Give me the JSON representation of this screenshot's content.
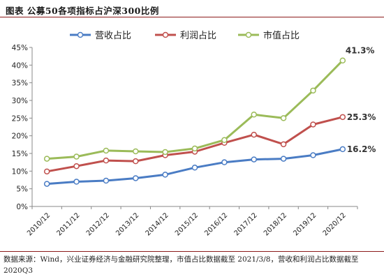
{
  "figure": {
    "title": "图表 公募50各项指标占沪深300比例",
    "source": "数据来源：Wind，兴业证券经济与金融研究院整理，市值占比数据截至 2021/3/8，营收和利润占比数据截至 2020Q3"
  },
  "chart_data": {
    "type": "line",
    "title": "",
    "xlabel": "",
    "ylabel": "",
    "categories": [
      "2010/12",
      "2011/12",
      "2012/12",
      "2013/12",
      "2014/12",
      "2015/12",
      "2016/12",
      "2017/12",
      "2018/12",
      "2019/12",
      "2020/12"
    ],
    "y_ticks": [
      "0%",
      "5%",
      "10%",
      "15%",
      "20%",
      "25%",
      "30%",
      "35%",
      "40%",
      "45%"
    ],
    "ylim": [
      0,
      45
    ],
    "unit": "%",
    "grid": false,
    "legend_position": "top",
    "series": [
      {
        "name": "营收占比",
        "color": "#4a7cc4",
        "values": [
          6.4,
          7.0,
          7.3,
          8.0,
          9.0,
          11.0,
          12.5,
          13.3,
          13.5,
          14.5,
          16.2
        ],
        "end_label": "16.2%"
      },
      {
        "name": "利润占比",
        "color": "#c0504d",
        "values": [
          9.9,
          11.4,
          13.0,
          12.8,
          14.5,
          15.5,
          18.0,
          20.3,
          17.6,
          23.2,
          25.3
        ],
        "end_label": "25.3%"
      },
      {
        "name": "市值占比",
        "color": "#9bbb59",
        "values": [
          13.5,
          14.1,
          15.8,
          15.6,
          15.4,
          16.4,
          18.8,
          26.0,
          25.0,
          32.8,
          41.3
        ],
        "end_label": "41.3%"
      }
    ]
  }
}
